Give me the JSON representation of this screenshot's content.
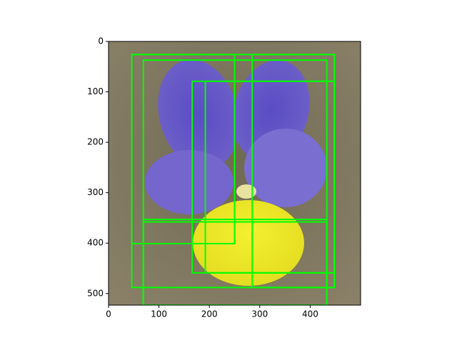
{
  "chart_data": {
    "type": "image",
    "xlim": [
      0,
      500
    ],
    "ylim": [
      523,
      0
    ],
    "xticks": [
      0,
      100,
      200,
      300,
      400
    ],
    "yticks": [
      0,
      100,
      200,
      300,
      400,
      500
    ],
    "color": "#00ff00",
    "boxes": [
      {
        "x0": 46,
        "y0": 26,
        "x1": 448,
        "y1": 488
      },
      {
        "x0": 69,
        "y0": 37,
        "x1": 433,
        "y1": 523
      },
      {
        "x0": 166,
        "y0": 79,
        "x1": 448,
        "y1": 459
      },
      {
        "x0": 192,
        "y0": 79,
        "x1": 448,
        "y1": 459
      },
      {
        "x0": 46,
        "y0": 26,
        "x1": 250,
        "y1": 401
      },
      {
        "x0": 285,
        "y0": 26,
        "x1": 448,
        "y1": 488
      },
      {
        "x0": 69,
        "y0": 353,
        "x1": 433,
        "y1": 523
      },
      {
        "x0": 69,
        "y0": 358,
        "x1": 433,
        "y1": 523
      }
    ]
  }
}
